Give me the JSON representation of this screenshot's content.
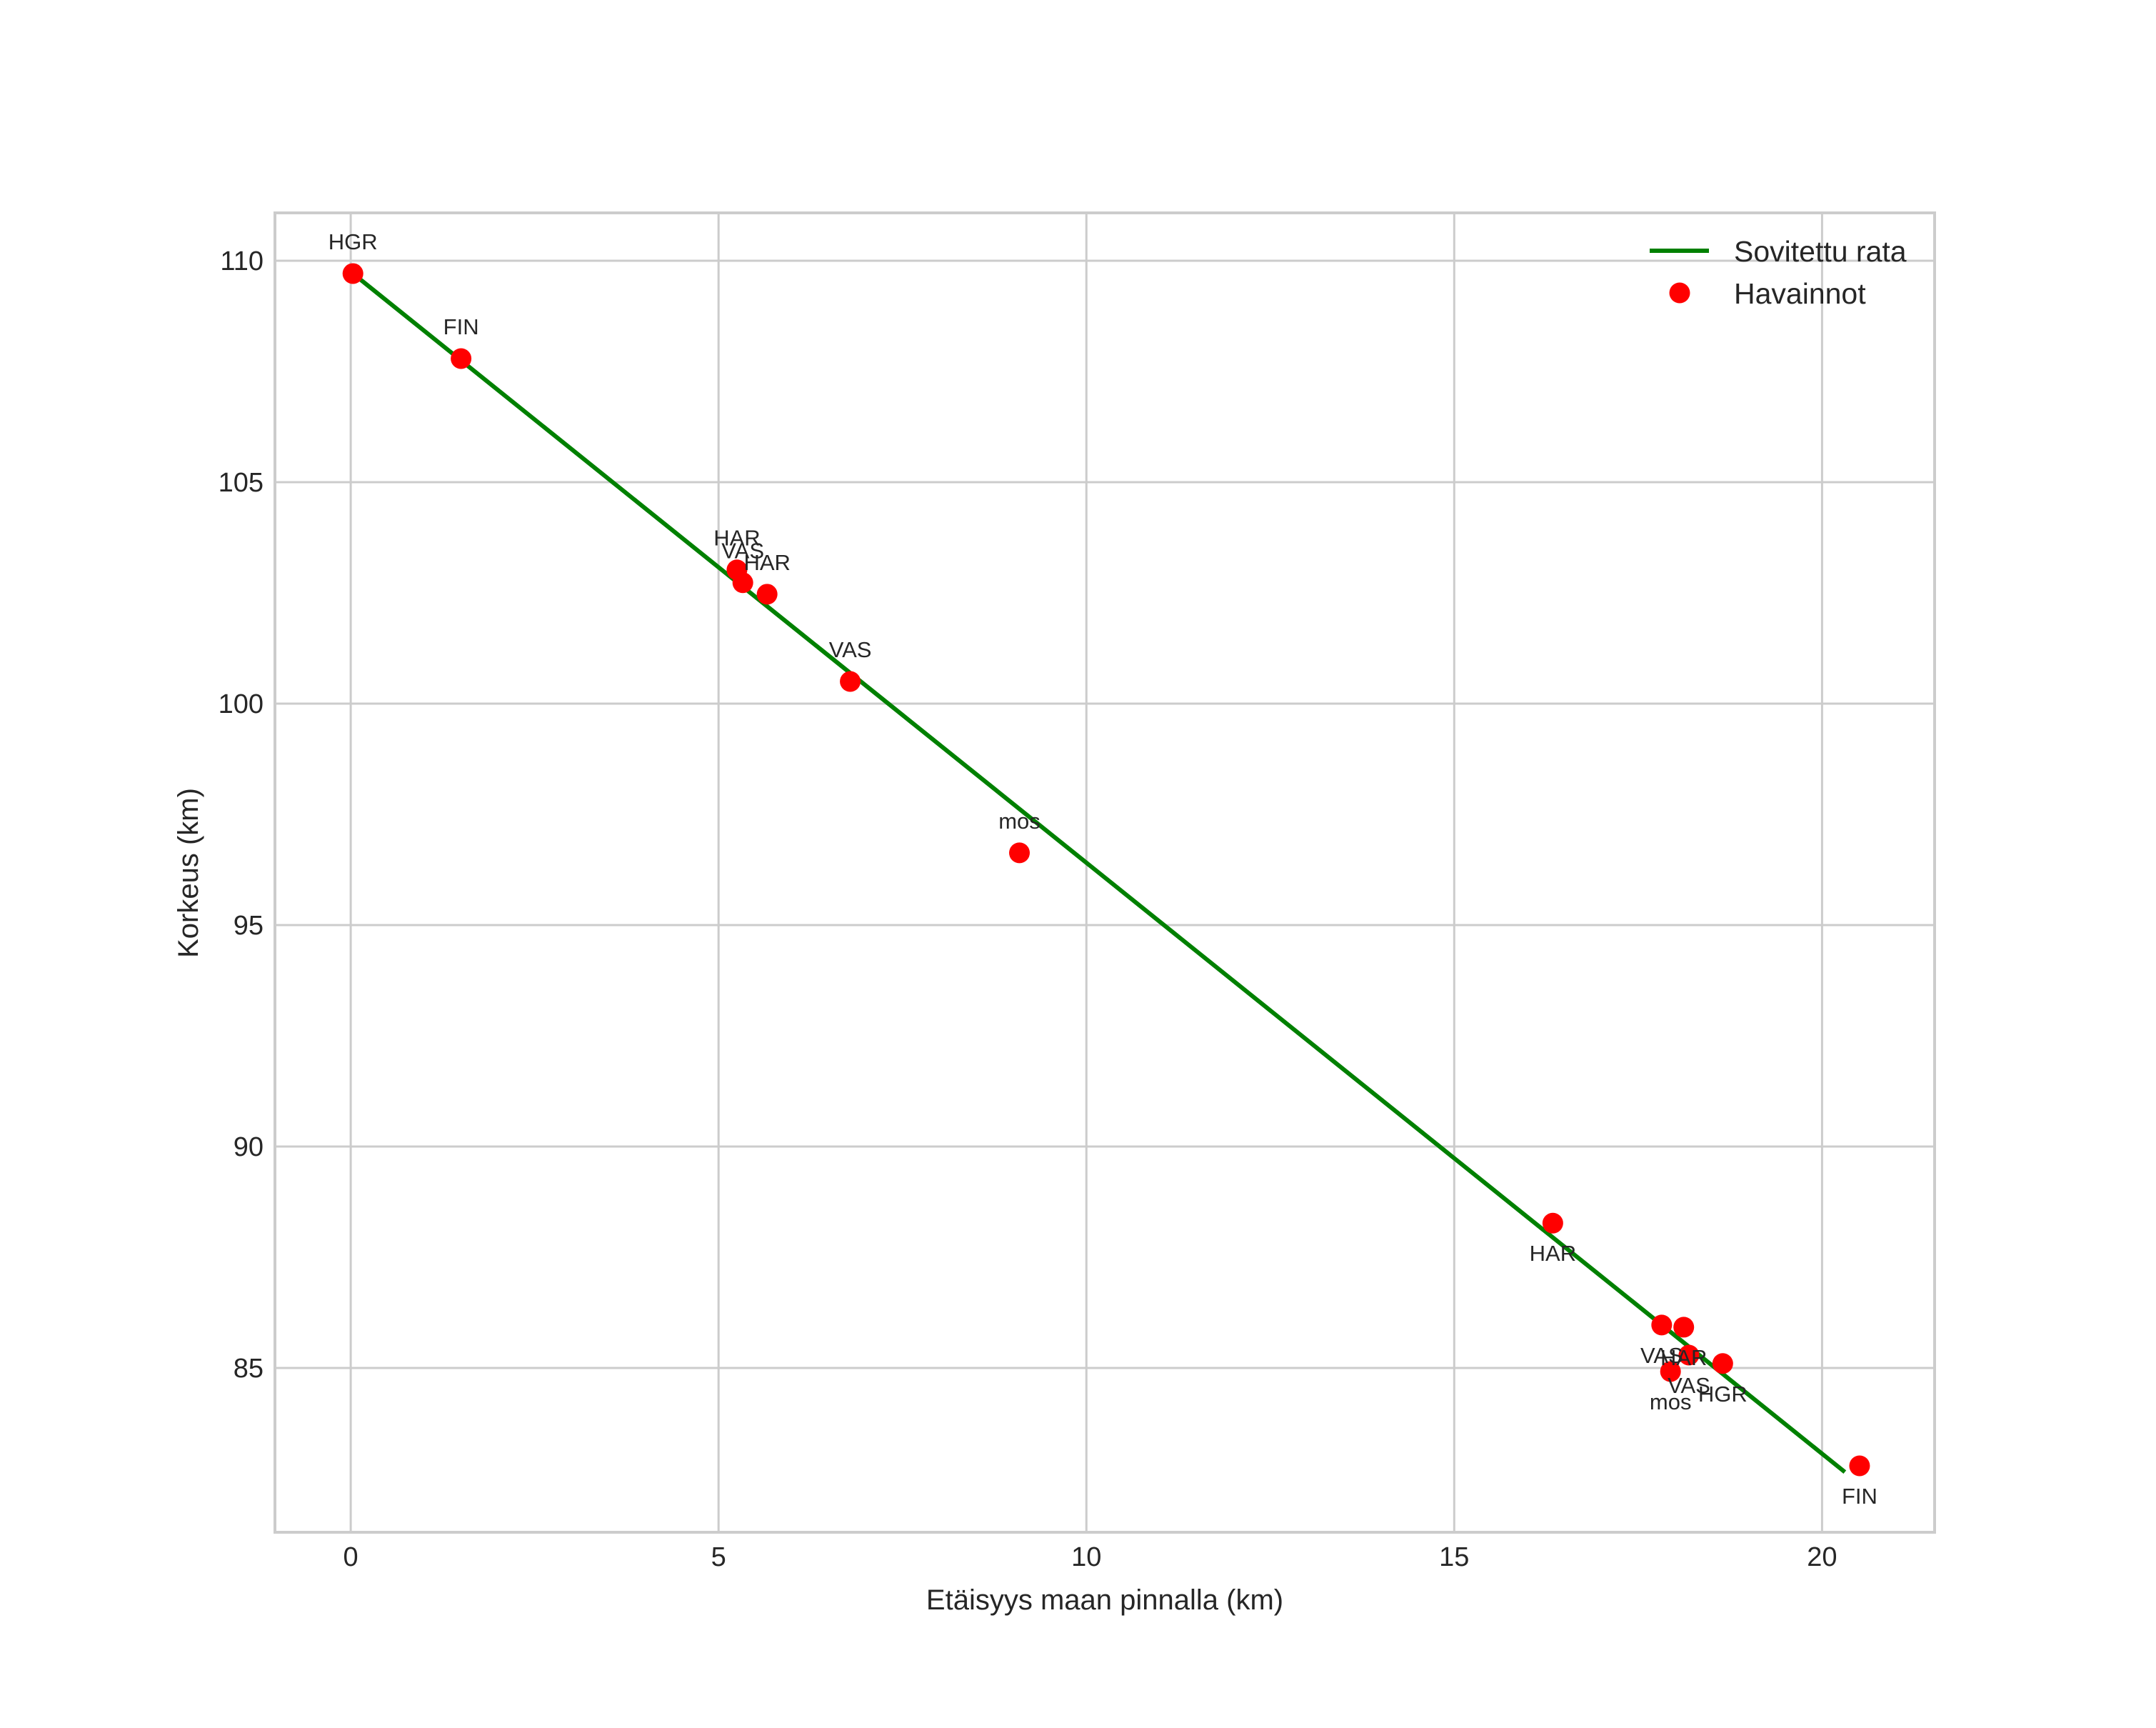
{
  "chart_data": {
    "type": "scatter",
    "title": "",
    "xlabel": "Etäisyys maan pinnalla (km)",
    "ylabel": "Korkeus (km)",
    "xlim": [
      -1.03,
      21.53
    ],
    "ylim": [
      81.29,
      111.08
    ],
    "xticks": [
      0,
      5,
      10,
      15,
      20
    ],
    "yticks": [
      85,
      90,
      95,
      100,
      105,
      110
    ],
    "grid": true,
    "legend_position": "upper right",
    "legend": [
      {
        "label": "Sovitettu rata",
        "type": "line",
        "color": "#008000"
      },
      {
        "label": "Havainnot",
        "type": "marker",
        "color": "#ff0000"
      }
    ],
    "series": [
      {
        "name": "Sovitettu rata",
        "type": "line",
        "color": "#008000",
        "x": [
          0.03,
          20.31
        ],
        "y": [
          109.71,
          82.65
        ]
      },
      {
        "name": "Havainnot",
        "type": "scatter",
        "color": "#ff0000",
        "points": [
          {
            "label": "HGR",
            "x": 0.03,
            "y": 109.71,
            "label_pos": "above"
          },
          {
            "label": "FIN",
            "x": 1.5,
            "y": 107.79,
            "label_pos": "above"
          },
          {
            "label": "HAR",
            "x": 5.25,
            "y": 103.02,
            "label_pos": "above"
          },
          {
            "label": "VAS",
            "x": 5.33,
            "y": 102.73,
            "label_pos": "above"
          },
          {
            "label": "HAR",
            "x": 5.66,
            "y": 102.47,
            "label_pos": "above"
          },
          {
            "label": "VAS",
            "x": 6.79,
            "y": 100.5,
            "label_pos": "above"
          },
          {
            "label": "mos",
            "x": 9.09,
            "y": 96.63,
            "label_pos": "above"
          },
          {
            "label": "HAR",
            "x": 16.34,
            "y": 88.27,
            "label_pos": "below"
          },
          {
            "label": "VAS",
            "x": 17.82,
            "y": 85.97,
            "label_pos": "below"
          },
          {
            "label": "HAR",
            "x": 18.12,
            "y": 85.92,
            "label_pos": "below"
          },
          {
            "label": "VAS",
            "x": 18.19,
            "y": 85.29,
            "label_pos": "below"
          },
          {
            "label": "mos",
            "x": 17.94,
            "y": 84.92,
            "label_pos": "below"
          },
          {
            "label": "HGR",
            "x": 18.65,
            "y": 85.1,
            "label_pos": "below"
          },
          {
            "label": "FIN",
            "x": 20.51,
            "y": 82.79,
            "label_pos": "below"
          }
        ]
      }
    ]
  }
}
